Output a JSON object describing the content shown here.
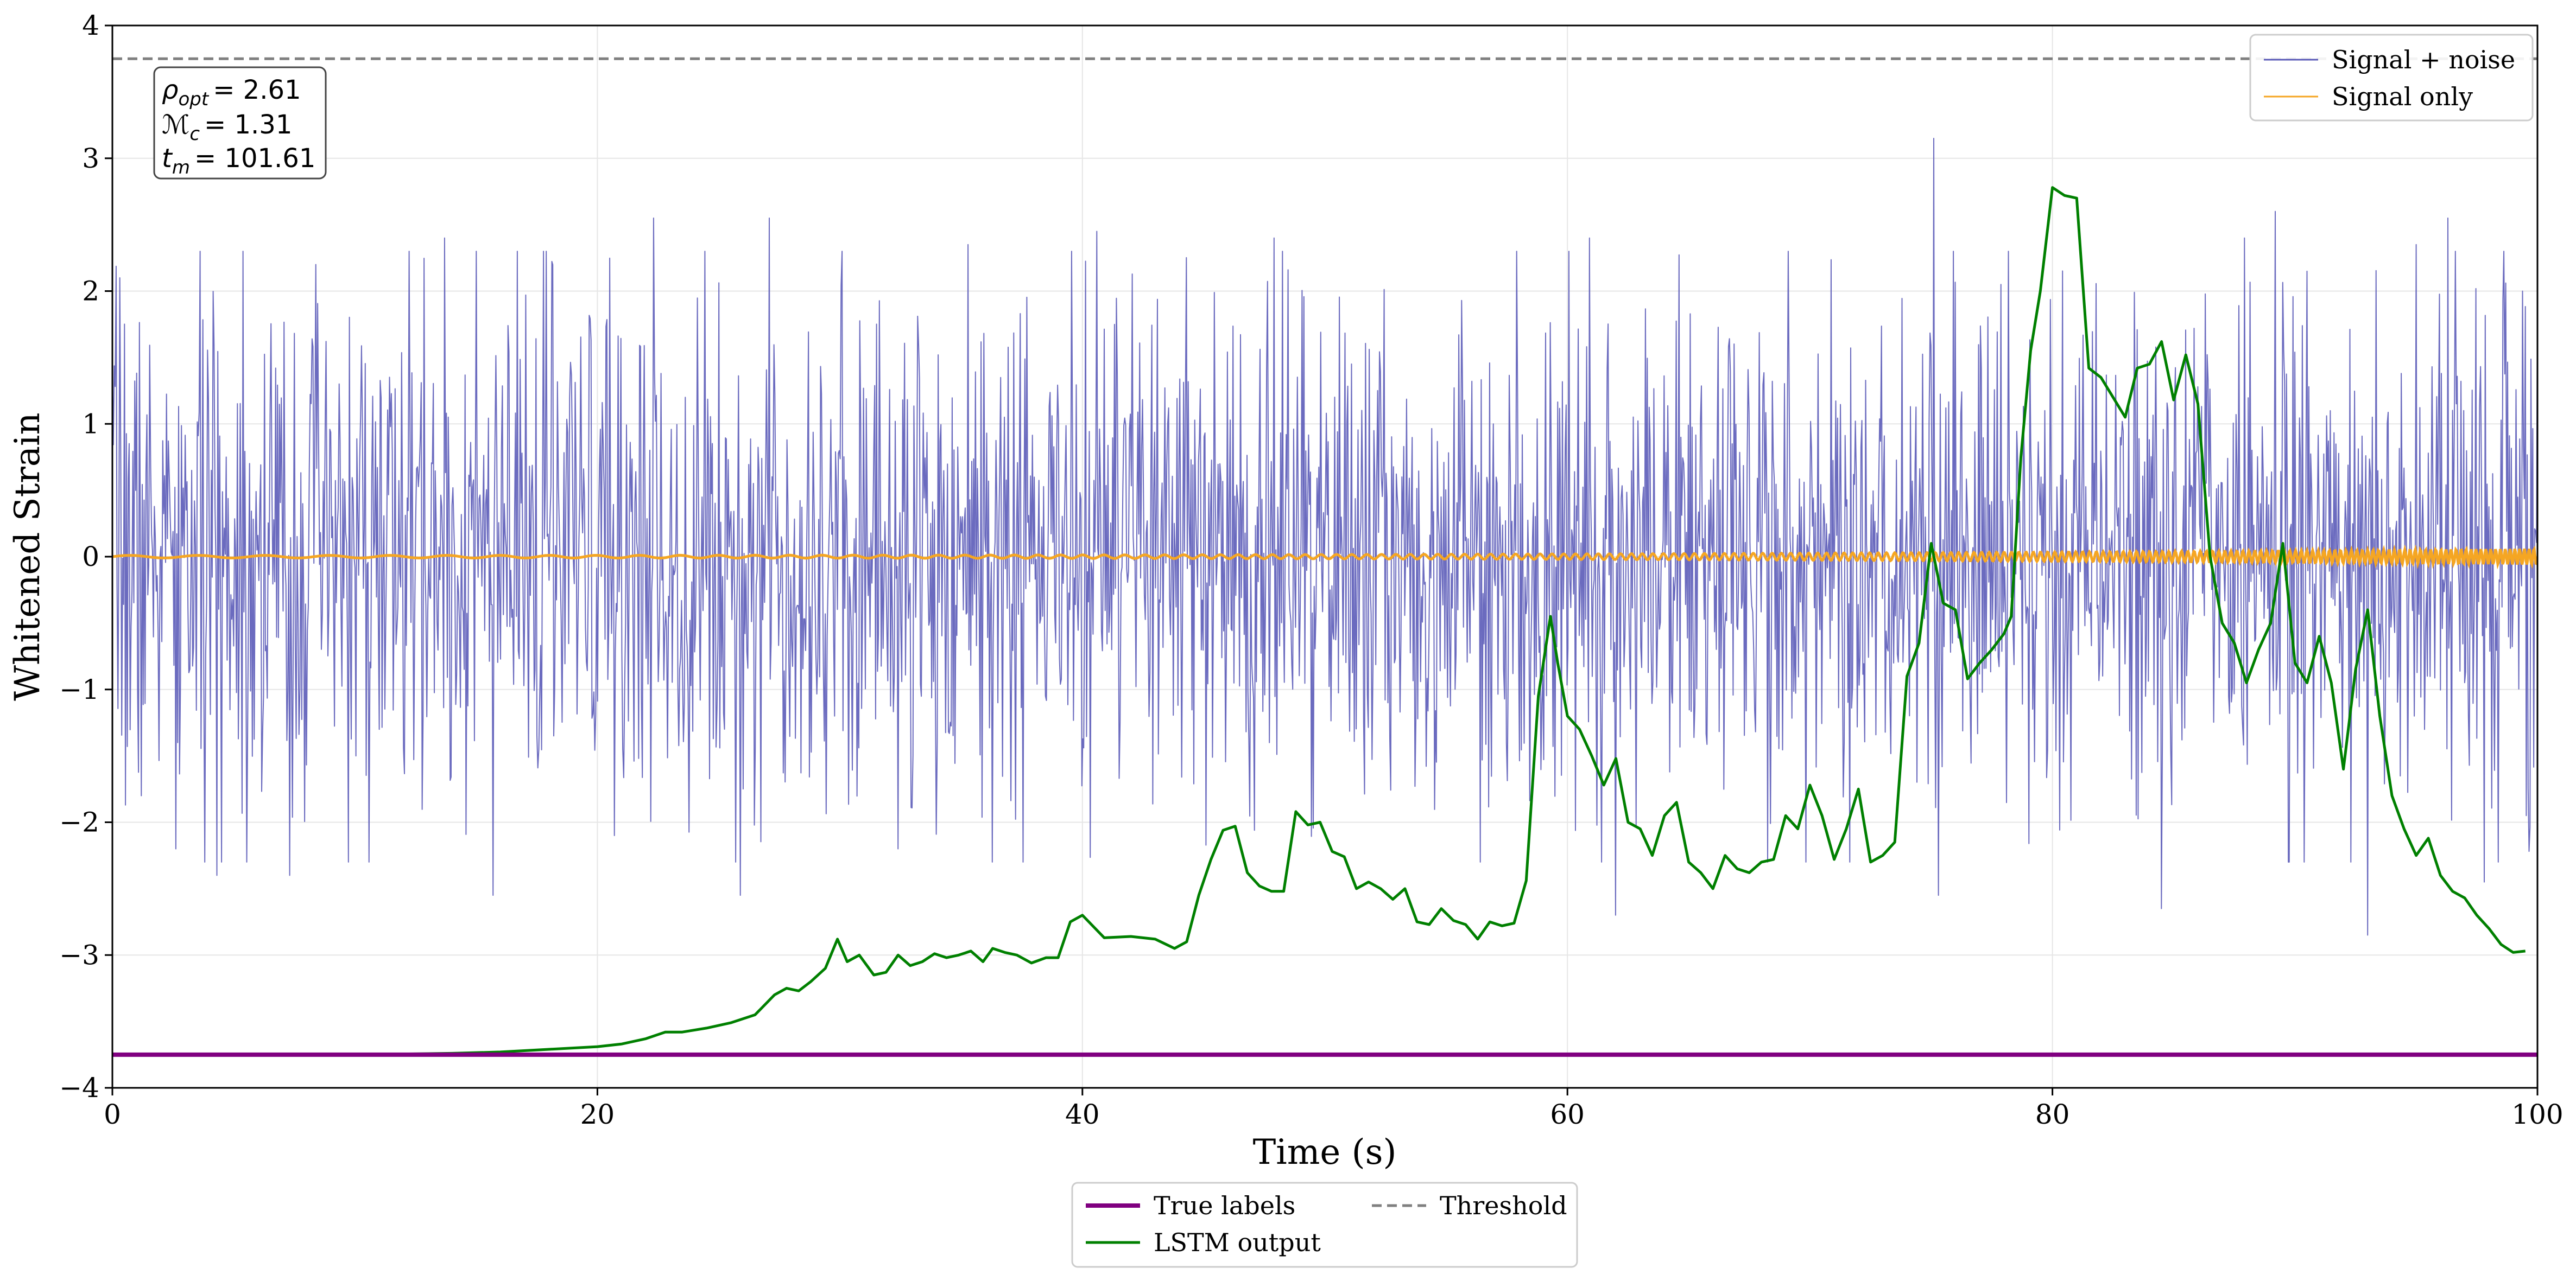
{
  "chart_data": {
    "type": "line",
    "title": "",
    "xlabel": "Time (s)",
    "ylabel": "Whitened Strain",
    "xlim": [
      0,
      100
    ],
    "ylim": [
      -4,
      4
    ],
    "grid": true,
    "x_ticks": [
      0,
      20,
      40,
      60,
      80,
      100
    ],
    "x_tick_labels": [
      "0",
      "20",
      "40",
      "60",
      "80",
      "100"
    ],
    "y_ticks": [
      -4,
      -3,
      -2,
      -1,
      0,
      1,
      2,
      3,
      4
    ],
    "y_tick_labels": [
      "−4",
      "−3",
      "−2",
      "−1",
      "0",
      "1",
      "2",
      "3",
      "4"
    ],
    "legend_upper": {
      "placement": "top-right",
      "entries": [
        {
          "label": "Signal + noise",
          "color": "#5b5bb8",
          "style": "solid-thin"
        },
        {
          "label": "Signal only",
          "color": "#f5a623",
          "style": "solid-thin"
        }
      ]
    },
    "legend_lower": {
      "placement": "bottom-center-outside",
      "entries": [
        {
          "label": "True labels",
          "color": "#800080",
          "style": "solid-thick"
        },
        {
          "label": "Threshold",
          "color": "#808080",
          "style": "dashed"
        },
        {
          "label": "LSTM output",
          "color": "#008000",
          "style": "solid"
        }
      ]
    },
    "annotation": {
      "placement": "top-left",
      "rho_symbol": "ρ",
      "rho_sub": "opt",
      "rho_value": "= 2.61",
      "mc_symbol": "ℳ",
      "mc_sub": "c",
      "mc_value": "= 1.31",
      "tm_symbol": "t",
      "tm_sub": "m",
      "tm_value": "= 101.61"
    },
    "series": [
      {
        "name": "Signal + noise",
        "color": "#5b5bb8",
        "kind": "noise",
        "sample_count": 2600,
        "std": 0.95,
        "seed": 7,
        "peaks": [
          {
            "x": 0.3,
            "y": 2.1
          },
          {
            "x": 2.6,
            "y": -2.2
          },
          {
            "x": 4.3,
            "y": -2.4
          },
          {
            "x": 5.4,
            "y": 2.3
          },
          {
            "x": 7.3,
            "y": -2.4
          },
          {
            "x": 8.4,
            "y": 2.2
          },
          {
            "x": 13.7,
            "y": 2.4
          },
          {
            "x": 15.7,
            "y": -2.55
          },
          {
            "x": 17.9,
            "y": 2.3
          },
          {
            "x": 20.7,
            "y": -2.1
          },
          {
            "x": 22.3,
            "y": 2.55
          },
          {
            "x": 25.9,
            "y": -2.55
          },
          {
            "x": 27.1,
            "y": 2.55
          },
          {
            "x": 32.4,
            "y": -2.2
          },
          {
            "x": 35.3,
            "y": 2.35
          },
          {
            "x": 40.6,
            "y": 2.45
          },
          {
            "x": 47.9,
            "y": 2.4
          },
          {
            "x": 56.4,
            "y": -2.3
          },
          {
            "x": 60.9,
            "y": 2.4
          },
          {
            "x": 62.0,
            "y": -2.7
          },
          {
            "x": 75.1,
            "y": 3.15
          },
          {
            "x": 75.3,
            "y": -2.55
          },
          {
            "x": 84.5,
            "y": -2.65
          },
          {
            "x": 87.9,
            "y": 2.4
          },
          {
            "x": 89.2,
            "y": 2.6
          },
          {
            "x": 93.0,
            "y": -2.85
          },
          {
            "x": 95.0,
            "y": 2.35
          },
          {
            "x": 96.3,
            "y": 2.55
          },
          {
            "x": 97.8,
            "y": -2.45
          },
          {
            "x": 99.4,
            "y": 2.0
          }
        ]
      },
      {
        "name": "Signal only",
        "color": "#f5a623",
        "kind": "chirp",
        "amplitude_start": 0.01,
        "amplitude_end": 0.06,
        "x_start": 0,
        "x_end": 100
      },
      {
        "name": "LSTM output",
        "color": "#008000",
        "kind": "line",
        "x": [
          0,
          5,
          10,
          14,
          16,
          18,
          20,
          21,
          22,
          22.8,
          23.5,
          24.5,
          25.5,
          26.5,
          27.3,
          27.8,
          28.3,
          28.8,
          29.4,
          29.9,
          30.3,
          30.8,
          31.4,
          31.9,
          32.4,
          32.9,
          33.4,
          33.9,
          34.4,
          34.9,
          35.4,
          35.9,
          36.3,
          36.8,
          37.3,
          37.9,
          38.5,
          39.0,
          39.5,
          40.0,
          40.9,
          42.0,
          43.0,
          43.8,
          44.3,
          44.8,
          45.3,
          45.8,
          46.3,
          46.8,
          47.3,
          47.8,
          48.3,
          48.8,
          49.3,
          49.8,
          50.3,
          50.8,
          51.3,
          51.8,
          52.3,
          52.8,
          53.3,
          53.8,
          54.3,
          54.8,
          55.3,
          55.8,
          56.3,
          56.8,
          57.3,
          57.8,
          58.3,
          58.8,
          59.3,
          59.6,
          60.0,
          60.5,
          61.0,
          61.5,
          62.0,
          62.5,
          63.0,
          63.5,
          64.0,
          64.5,
          65.0,
          65.5,
          66.0,
          66.5,
          67.0,
          67.5,
          68.0,
          68.5,
          69.0,
          69.5,
          70.0,
          70.5,
          71.0,
          71.5,
          72.0,
          72.5,
          73.0,
          73.5,
          74.0,
          74.5,
          75.0,
          75.5,
          76.0,
          76.5,
          77.0,
          77.5,
          78.0,
          78.3,
          78.7,
          79.1,
          79.5,
          80.0,
          80.5,
          81.0,
          81.5,
          82.0,
          82.5,
          83.0,
          83.5,
          84.0,
          84.5,
          85.0,
          85.5,
          86.0,
          86.5,
          87.0,
          87.5,
          88.0,
          88.5,
          89.0,
          89.5,
          90.0,
          90.5,
          91.0,
          91.5,
          92.0,
          92.5,
          93.0,
          93.5,
          94.0,
          94.5,
          95.0,
          95.5,
          96.0,
          96.5,
          97.0,
          97.5,
          98.0,
          98.5,
          99.0,
          99.5
        ],
        "y": [
          -3.75,
          -3.75,
          -3.75,
          -3.74,
          -3.73,
          -3.71,
          -3.69,
          -3.67,
          -3.63,
          -3.58,
          -3.58,
          -3.55,
          -3.51,
          -3.45,
          -3.3,
          -3.25,
          -3.27,
          -3.2,
          -3.1,
          -2.88,
          -3.05,
          -3.0,
          -3.15,
          -3.13,
          -3.0,
          -3.08,
          -3.05,
          -2.99,
          -3.02,
          -3.0,
          -2.97,
          -3.05,
          -2.95,
          -2.98,
          -3.0,
          -3.06,
          -3.02,
          -3.02,
          -2.75,
          -2.7,
          -2.87,
          -2.86,
          -2.88,
          -2.95,
          -2.9,
          -2.55,
          -2.28,
          -2.06,
          -2.03,
          -2.38,
          -2.48,
          -2.52,
          -2.52,
          -1.92,
          -2.02,
          -2.0,
          -2.22,
          -2.26,
          -2.5,
          -2.45,
          -2.5,
          -2.58,
          -2.5,
          -2.75,
          -2.77,
          -2.65,
          -2.74,
          -2.77,
          -2.88,
          -2.75,
          -2.78,
          -2.76,
          -2.44,
          -1.05,
          -0.45,
          -0.8,
          -1.2,
          -1.3,
          -1.5,
          -1.72,
          -1.52,
          -2.0,
          -2.05,
          -2.25,
          -1.95,
          -1.85,
          -2.3,
          -2.38,
          -2.5,
          -2.25,
          -2.35,
          -2.38,
          -2.3,
          -2.28,
          -1.95,
          -2.05,
          -1.72,
          -1.95,
          -2.28,
          -2.05,
          -1.75,
          -2.3,
          -2.25,
          -2.15,
          -0.9,
          -0.65,
          0.1,
          -0.35,
          -0.4,
          -0.92,
          -0.8,
          -0.7,
          -0.58,
          -0.45,
          0.75,
          1.55,
          2.0,
          2.78,
          2.72,
          2.7,
          1.42,
          1.35,
          1.2,
          1.05,
          1.42,
          1.45,
          1.62,
          1.18,
          1.52,
          1.15,
          0.0,
          -0.5,
          -0.65,
          -0.95,
          -0.7,
          -0.5,
          0.1,
          -0.8,
          -0.95,
          -0.6,
          -0.95,
          -1.6,
          -0.85,
          -0.4,
          -1.2,
          -1.8,
          -2.05,
          -2.25,
          -2.12,
          -2.4,
          -2.52,
          -2.57,
          -2.7,
          -2.8,
          -2.92,
          -2.98,
          -2.97
        ]
      },
      {
        "name": "True labels",
        "color": "#800080",
        "kind": "constant",
        "y": -3.75
      },
      {
        "name": "Threshold",
        "color": "#808080",
        "kind": "constant",
        "y": 3.75
      }
    ]
  }
}
